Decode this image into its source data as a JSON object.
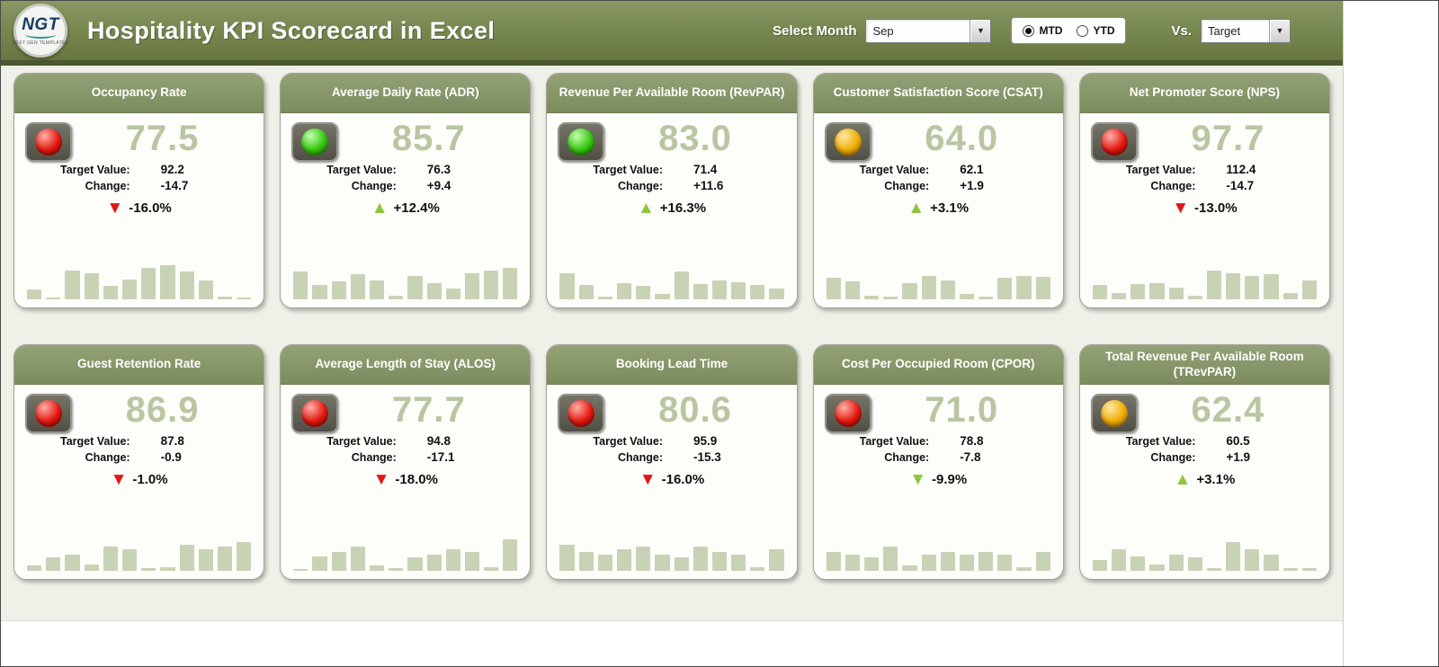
{
  "header": {
    "title": "Hospitality KPI Scorecard in Excel",
    "logo_text": "NGT",
    "logo_subtext": "NEXT GEN TEMPLATES",
    "select_month_label": "Select Month",
    "month_value": "Sep",
    "radio_options": [
      {
        "label": "MTD",
        "selected": true
      },
      {
        "label": "YTD",
        "selected": false
      }
    ],
    "vs_label": "Vs.",
    "vs_value": "Target"
  },
  "labels": {
    "target": "Target Value:",
    "change": "Change:"
  },
  "theme": {
    "header_green": "#75854e",
    "card_header_green": "#87966a",
    "value_green": "#b8c6a2",
    "bar_green": "#c8d3b6",
    "red": "#e31515",
    "green": "#8ec63f",
    "amber": "#f0ad00"
  },
  "cards": [
    {
      "title": "Occupancy Rate",
      "light": "red",
      "value": "77.5",
      "target": "92.2",
      "change": "-14.7",
      "pct": "-16.0%",
      "direction": "down",
      "arrow_color": "red",
      "bars": [
        20,
        4,
        58,
        52,
        26,
        40,
        62,
        68,
        56,
        38,
        6,
        4
      ]
    },
    {
      "title": "Average Daily Rate (ADR)",
      "light": "green",
      "value": "85.7",
      "target": "76.3",
      "change": "+9.4",
      "pct": "+12.4%",
      "direction": "up",
      "arrow_color": "green",
      "bars": [
        55,
        28,
        35,
        50,
        38,
        8,
        46,
        32,
        22,
        52,
        58,
        62
      ]
    },
    {
      "title": "Revenue Per Available Room (RevPAR)",
      "light": "green",
      "value": "83.0",
      "target": "71.4",
      "change": "+11.6",
      "pct": "+16.3%",
      "direction": "up",
      "arrow_color": "green",
      "bars": [
        52,
        28,
        6,
        32,
        26,
        10,
        55,
        30,
        38,
        34,
        28,
        22
      ]
    },
    {
      "title": "Customer Satisfaction Score (CSAT)",
      "light": "yellow",
      "value": "64.0",
      "target": "62.1",
      "change": "+1.9",
      "pct": "+3.1%",
      "direction": "up",
      "arrow_color": "green",
      "bars": [
        42,
        36,
        8,
        6,
        32,
        46,
        38,
        10,
        6,
        42,
        46,
        44
      ]
    },
    {
      "title": "Net Promoter Score (NPS)",
      "light": "red",
      "value": "97.7",
      "target": "112.4",
      "change": "-14.7",
      "pct": "-13.0%",
      "direction": "down",
      "arrow_color": "red",
      "bars": [
        28,
        12,
        30,
        32,
        24,
        8,
        58,
        52,
        46,
        50,
        12,
        38
      ]
    },
    {
      "title": "Guest Retention Rate",
      "light": "red",
      "value": "86.9",
      "target": "87.8",
      "change": "-0.9",
      "pct": "-1.0%",
      "direction": "down",
      "arrow_color": "red",
      "bars": [
        10,
        26,
        32,
        12,
        48,
        42,
        6,
        8,
        52,
        42,
        48,
        58
      ]
    },
    {
      "title": "Average Length of Stay (ALOS)",
      "light": "red",
      "value": "77.7",
      "target": "94.8",
      "change": "-17.1",
      "pct": "-18.0%",
      "direction": "down",
      "arrow_color": "red",
      "bars": [
        4,
        28,
        38,
        48,
        10,
        6,
        26,
        32,
        42,
        38,
        8,
        62
      ]
    },
    {
      "title": "Booking Lead Time",
      "light": "red",
      "value": "80.6",
      "target": "95.9",
      "change": "-15.3",
      "pct": "-16.0%",
      "direction": "down",
      "arrow_color": "red",
      "bars": [
        52,
        38,
        32,
        42,
        48,
        32,
        26,
        48,
        38,
        32,
        8,
        42
      ]
    },
    {
      "title": "Cost Per Occupied Room (CPOR)",
      "light": "red",
      "value": "71.0",
      "target": "78.8",
      "change": "-7.8",
      "pct": "-9.9%",
      "direction": "down",
      "arrow_color": "green",
      "bars": [
        38,
        32,
        26,
        48,
        10,
        32,
        38,
        32,
        38,
        32,
        8,
        38
      ]
    },
    {
      "title": "Total Revenue Per Available Room (TRevPAR)",
      "light": "yellow",
      "value": "62.4",
      "target": "60.5",
      "change": "+1.9",
      "pct": "+3.1%",
      "direction": "up",
      "arrow_color": "green",
      "bars": [
        22,
        42,
        28,
        12,
        32,
        26,
        6,
        58,
        42,
        32,
        5,
        5
      ]
    }
  ]
}
